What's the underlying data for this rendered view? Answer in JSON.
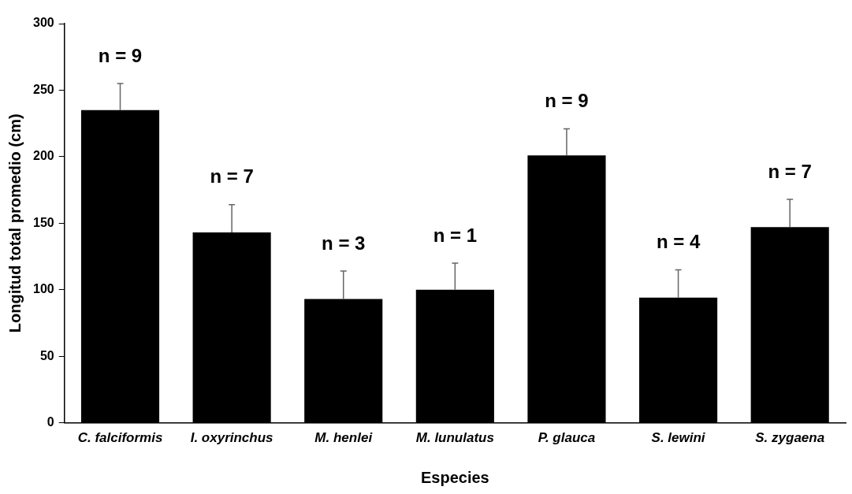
{
  "chart_data": {
    "type": "bar",
    "xlabel": "Especies",
    "ylabel": "Longitud total promedio (cm)",
    "categories": [
      "C. falciformis",
      "I. oxyrinchus",
      "M. henlei",
      "M. lunulatus",
      "P. glauca",
      "S. lewini",
      "S. zygaena"
    ],
    "values": [
      235,
      143,
      93,
      100,
      201,
      94,
      147
    ],
    "errors": [
      [
        235,
        255
      ],
      [
        143,
        164
      ],
      [
        93,
        114
      ],
      [
        100,
        120
      ],
      [
        201,
        221
      ],
      [
        94,
        115
      ],
      [
        147,
        168
      ]
    ],
    "color": "#000000",
    "ylim": [
      0,
      300
    ],
    "yticks": [
      0,
      50,
      100,
      150,
      200,
      250,
      300
    ],
    "annotations": [
      {
        "text": "n = 9",
        "x": "C. falciformis",
        "y": 255
      },
      {
        "text": "n = 7",
        "x": "I. oxyrinchus",
        "y": 164
      },
      {
        "text": "n = 3",
        "x": "M. henlei",
        "y": 114
      },
      {
        "text": "n = 1",
        "x": "M. lunulatus",
        "y": 120
      },
      {
        "text": "n = 9",
        "x": "P. glauca",
        "y": 221
      },
      {
        "text": "n = 4",
        "x": "S. lewini",
        "y": 115
      },
      {
        "text": "n = 7",
        "x": "S. zygaena",
        "y": 168
      }
    ],
    "grid": false,
    "legend": false
  }
}
